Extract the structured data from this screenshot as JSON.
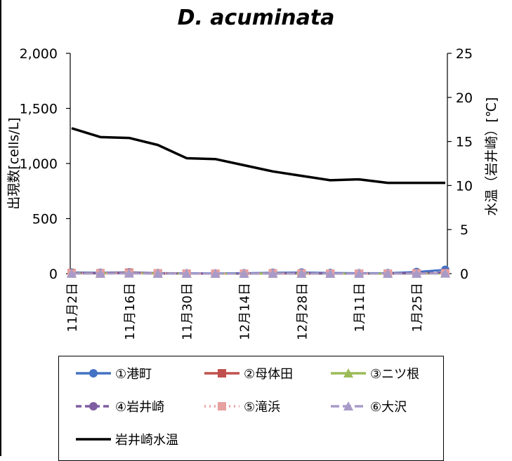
{
  "chart_data": {
    "type": "line",
    "title": "D. acuminata",
    "ylabel": "出現数[cells/L]",
    "y2label": "水温（岩井崎）[℃]",
    "ylim": [
      0,
      2000
    ],
    "y2lim": [
      0,
      25
    ],
    "yticks": [
      "0",
      "500",
      "1,000",
      "1,500",
      "2,000"
    ],
    "y2ticks": [
      "0",
      "5",
      "10",
      "15",
      "20",
      "25"
    ],
    "x": [
      "11/02",
      "11/09",
      "11/16",
      "11/23",
      "11/30",
      "12/07",
      "12/14",
      "12/21",
      "12/28",
      "01/04",
      "01/11",
      "01/18",
      "01/25",
      "02/01"
    ],
    "xtick_labels": [
      "11月2日",
      "11月16日",
      "11月30日",
      "12月14日",
      "12月28日",
      "1月11日",
      "1月25日"
    ],
    "series": [
      {
        "name": "①港町",
        "axis": "left",
        "color": "#4472C4",
        "marker": "circle",
        "dash": "solid",
        "values": [
          10,
          8,
          12,
          5,
          3,
          2,
          4,
          8,
          10,
          6,
          4,
          5,
          15,
          35
        ]
      },
      {
        "name": "②母体田",
        "axis": "left",
        "color": "#C0504D",
        "marker": "square",
        "dash": "solid",
        "values": [
          5,
          3,
          8,
          2,
          0,
          0,
          0,
          2,
          1,
          0,
          0,
          0,
          2,
          5
        ]
      },
      {
        "name": "③ニツ根",
        "axis": "left",
        "color": "#9BBB59",
        "marker": "triangle",
        "dash": "solid",
        "values": [
          3,
          2,
          4,
          1,
          0,
          0,
          0,
          1,
          2,
          0,
          0,
          0,
          1,
          2
        ]
      },
      {
        "name": "④岩井崎",
        "axis": "left",
        "color": "#7E5EA0",
        "marker": "circle",
        "dash": "dash",
        "values": [
          4,
          3,
          5,
          2,
          1,
          0,
          0,
          3,
          4,
          2,
          1,
          0,
          6,
          10
        ]
      },
      {
        "name": "⑤滝浜",
        "axis": "left",
        "color": "#E6A0A0",
        "marker": "square",
        "dash": "dot",
        "values": [
          2,
          1,
          3,
          1,
          0,
          0,
          0,
          1,
          1,
          0,
          0,
          0,
          2,
          3
        ]
      },
      {
        "name": "⑥大沢",
        "axis": "left",
        "color": "#A99BC8",
        "marker": "triangle",
        "dash": "longdash",
        "values": [
          1,
          1,
          2,
          0,
          0,
          0,
          0,
          1,
          1,
          0,
          0,
          0,
          1,
          2
        ]
      },
      {
        "name": "岩井崎水温",
        "axis": "right",
        "color": "#000000",
        "marker": "none",
        "dash": "solid",
        "values": [
          16.5,
          15.5,
          15.4,
          14.6,
          13.1,
          13.0,
          12.3,
          11.6,
          11.1,
          10.6,
          10.7,
          10.3,
          10.3,
          10.3
        ]
      }
    ],
    "legend_position": "bottom",
    "grid": false
  }
}
